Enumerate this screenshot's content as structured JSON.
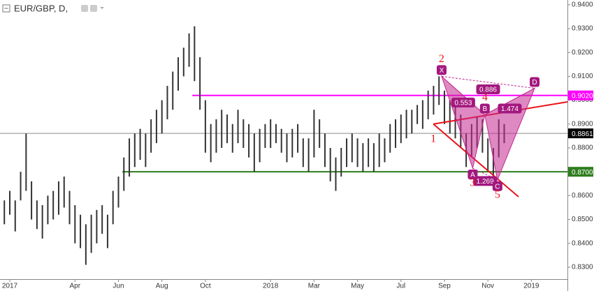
{
  "chart_data": {
    "type": "ohlc-bars",
    "title": "EUR/GBP, D,",
    "xlim": [
      -0.45,
      25.66
    ],
    "ylim": [
      0.825,
      0.942
    ],
    "xticks": [
      {
        "value": 0,
        "label": "2017"
      },
      {
        "value": 3,
        "label": "Apr"
      },
      {
        "value": 5,
        "label": "Jun"
      },
      {
        "value": 7,
        "label": "Aug"
      },
      {
        "value": 9,
        "label": "Oct"
      },
      {
        "value": 12,
        "label": "2018"
      },
      {
        "value": 14,
        "label": "Mar"
      },
      {
        "value": 16,
        "label": "May"
      },
      {
        "value": 18,
        "label": "Jul"
      },
      {
        "value": 20,
        "label": "Sep"
      },
      {
        "value": 22,
        "label": "Nov"
      },
      {
        "value": 24,
        "label": "2019"
      }
    ],
    "yticks": [
      {
        "value": 0.94,
        "label": "0.9400"
      },
      {
        "value": 0.93,
        "label": "0.9300"
      },
      {
        "value": 0.92,
        "label": "0.9200"
      },
      {
        "value": 0.91,
        "label": "0.9100"
      },
      {
        "value": 0.9,
        "label": "0.9000"
      },
      {
        "value": 0.89,
        "label": "0.8900"
      },
      {
        "value": 0.88,
        "label": "0.8800"
      },
      {
        "value": 0.87,
        "label": "0.8700"
      },
      {
        "value": 0.86,
        "label": "0.8600"
      },
      {
        "value": 0.85,
        "label": "0.8500"
      },
      {
        "value": 0.84,
        "label": "0.8400"
      },
      {
        "value": 0.83,
        "label": "0.8300"
      }
    ],
    "color": "#333333",
    "x": [
      -0.25,
      0,
      0.25,
      0.5,
      0.75,
      1,
      1.25,
      1.5,
      1.75,
      2,
      2.25,
      2.5,
      2.75,
      3,
      3.25,
      3.5,
      3.75,
      4,
      4.25,
      4.5,
      4.75,
      5,
      5.25,
      5.5,
      5.75,
      6,
      6.25,
      6.5,
      6.75,
      7,
      7.25,
      7.5,
      7.75,
      8,
      8.25,
      8.5,
      8.75,
      9,
      9.25,
      9.5,
      9.75,
      10,
      10.25,
      10.5,
      10.75,
      11,
      11.25,
      11.5,
      11.75,
      12,
      12.25,
      12.5,
      12.75,
      13,
      13.25,
      13.5,
      13.75,
      14,
      14.25,
      14.5,
      14.75,
      15,
      15.25,
      15.5,
      15.75,
      16,
      16.25,
      16.5,
      16.75,
      17,
      17.25,
      17.5,
      17.75,
      18,
      18.25,
      18.5,
      18.75,
      19,
      19.25,
      19.5,
      19.75,
      20,
      20.25,
      20.5,
      20.75,
      21,
      21.25,
      21.5,
      21.75,
      22,
      22.25,
      22.5,
      22.75
    ],
    "high": [
      0.858,
      0.862,
      0.858,
      0.87,
      0.886,
      0.866,
      0.858,
      0.856,
      0.86,
      0.862,
      0.866,
      0.868,
      0.862,
      0.856,
      0.852,
      0.848,
      0.852,
      0.854,
      0.856,
      0.852,
      0.862,
      0.868,
      0.876,
      0.884,
      0.886,
      0.888,
      0.886,
      0.892,
      0.896,
      0.9,
      0.906,
      0.912,
      0.918,
      0.922,
      0.928,
      0.931,
      0.918,
      0.9,
      0.89,
      0.892,
      0.896,
      0.894,
      0.89,
      0.896,
      0.892,
      0.89,
      0.886,
      0.888,
      0.89,
      0.892,
      0.89,
      0.888,
      0.886,
      0.888,
      0.89,
      0.884,
      0.884,
      0.896,
      0.892,
      0.886,
      0.88,
      0.876,
      0.88,
      0.884,
      0.886,
      0.884,
      0.882,
      0.884,
      0.882,
      0.886,
      0.884,
      0.89,
      0.892,
      0.894,
      0.896,
      0.896,
      0.898,
      0.9,
      0.904,
      0.906,
      0.91,
      0.904,
      0.9,
      0.898,
      0.894,
      0.886,
      0.89,
      0.893,
      0.892,
      0.884,
      0.88,
      0.892,
      0.89
    ],
    "low": [
      0.848,
      0.852,
      0.845,
      0.858,
      0.862,
      0.85,
      0.846,
      0.842,
      0.848,
      0.85,
      0.852,
      0.855,
      0.848,
      0.84,
      0.838,
      0.831,
      0.836,
      0.84,
      0.844,
      0.838,
      0.848,
      0.855,
      0.862,
      0.868,
      0.872,
      0.875,
      0.872,
      0.878,
      0.882,
      0.886,
      0.892,
      0.896,
      0.904,
      0.91,
      0.914,
      0.908,
      0.896,
      0.878,
      0.874,
      0.878,
      0.88,
      0.882,
      0.878,
      0.882,
      0.88,
      0.876,
      0.87,
      0.874,
      0.88,
      0.88,
      0.882,
      0.878,
      0.874,
      0.876,
      0.878,
      0.872,
      0.87,
      0.876,
      0.88,
      0.872,
      0.866,
      0.862,
      0.868,
      0.872,
      0.874,
      0.872,
      0.87,
      0.872,
      0.87,
      0.872,
      0.874,
      0.878,
      0.88,
      0.882,
      0.884,
      0.886,
      0.89,
      0.888,
      0.892,
      0.894,
      0.898,
      0.89,
      0.886,
      0.884,
      0.88,
      0.872,
      0.876,
      0.88,
      0.878,
      0.87,
      0.867,
      0.876,
      0.882
    ],
    "hlines": [
      {
        "value": 0.902,
        "label": "0.9020",
        "color": "#ff00ff",
        "from": 8.4
      },
      {
        "value": 0.87,
        "label": "0.8700",
        "color": "#2e7d1e",
        "from": 5.18
      },
      {
        "value": 0.8861,
        "label": "0.8861",
        "color": "#8a8a8a",
        "label_color": "#000000"
      }
    ],
    "pattern": {
      "color": "#c2288f",
      "points": [
        {
          "label": "X",
          "x": 19.87,
          "y": 0.91
        },
        {
          "label": "A",
          "x": 21.3,
          "y": 0.8715
        },
        {
          "label": "B",
          "x": 21.86,
          "y": 0.8939
        },
        {
          "label": "C",
          "x": 22.44,
          "y": 0.8666
        },
        {
          "label": "D",
          "x": 24.15,
          "y": 0.905
        }
      ],
      "ratios": [
        {
          "label": "0.553",
          "from": 0,
          "to": 2
        },
        {
          "label": "1.269",
          "from": 1,
          "to": 3
        },
        {
          "label": "1.474",
          "from": 2,
          "to": 4
        },
        {
          "label": "0.886",
          "from": 0,
          "to": 4
        }
      ]
    },
    "waves": [
      {
        "label": "1",
        "x": 19.49,
        "y": 0.89
      },
      {
        "label": "2",
        "x": 19.87,
        "y": 0.91
      },
      {
        "label": "3",
        "x": 21.3,
        "y": 0.8715
      },
      {
        "label": "4",
        "x": 21.86,
        "y": 0.8939
      },
      {
        "label": "5",
        "x": 22.44,
        "y": 0.8666
      }
    ],
    "trendlines": {
      "color": "#e8141b",
      "lines": [
        {
          "x": [
            19.49,
            25.66
          ],
          "y": [
            0.89,
            0.8993
          ]
        },
        {
          "x": [
            19.49,
            23.41
          ],
          "y": [
            0.89,
            0.8595
          ]
        }
      ]
    }
  }
}
